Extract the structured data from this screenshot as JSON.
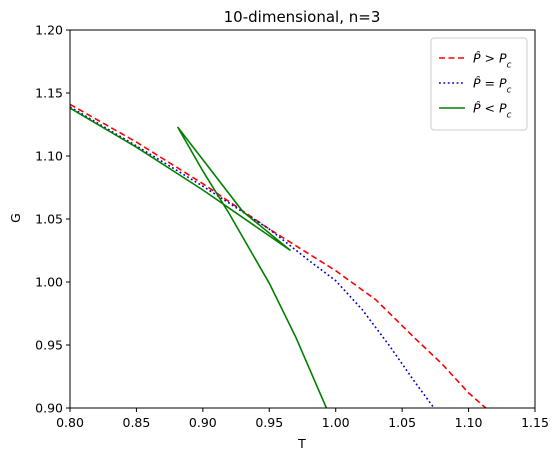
{
  "chart_data": {
    "type": "line",
    "title": "10-dimensional, n=3",
    "xlabel": "T",
    "ylabel": "G",
    "xlim": [
      0.8,
      1.15
    ],
    "ylim": [
      0.9,
      1.2
    ],
    "xticks": [
      "0.80",
      "0.85",
      "0.90",
      "0.95",
      "1.00",
      "1.05",
      "1.10",
      "1.15"
    ],
    "yticks": [
      "0.90",
      "0.95",
      "1.00",
      "1.05",
      "1.10",
      "1.15",
      "1.20"
    ],
    "grid": false,
    "legend_placement": "top-right",
    "series": [
      {
        "name": "P̂ > P_c",
        "label_html": "P̂ &gt; P<tspan baseline-shift='sub' font-size='9'>c</tspan>",
        "color": "#ff0000",
        "style": "dashed",
        "points": [
          [
            0.8,
            1.141
          ],
          [
            0.85,
            1.111
          ],
          [
            0.9,
            1.078
          ],
          [
            0.95,
            1.042
          ],
          [
            1.0,
            1.009
          ],
          [
            1.03,
            0.986
          ],
          [
            1.06,
            0.955
          ],
          [
            1.08,
            0.935
          ],
          [
            1.1,
            0.912
          ],
          [
            1.113,
            0.9
          ]
        ]
      },
      {
        "name": "P̂ = P_c",
        "color": "#0000cc",
        "style": "dotted",
        "points": [
          [
            0.8,
            1.139
          ],
          [
            0.85,
            1.108
          ],
          [
            0.9,
            1.076
          ],
          [
            0.95,
            1.042
          ],
          [
            0.98,
            1.017
          ],
          [
            1.0,
            1.001
          ],
          [
            1.02,
            0.978
          ],
          [
            1.04,
            0.95
          ],
          [
            1.06,
            0.92
          ],
          [
            1.074,
            0.9
          ]
        ]
      },
      {
        "name": "P̂ < P_c",
        "color": "#008000",
        "style": "solid",
        "points": [
          [
            0.8,
            1.138
          ],
          [
            0.85,
            1.107
          ],
          [
            0.9,
            1.073
          ],
          [
            0.966,
            1.025
          ],
          [
            0.93,
            1.056
          ],
          [
            0.9,
            1.097
          ],
          [
            0.881,
            1.123
          ],
          [
            0.9,
            1.088
          ],
          [
            0.92,
            1.054
          ],
          [
            0.95,
            0.999
          ],
          [
            0.97,
            0.956
          ],
          [
            0.993,
            0.9
          ]
        ]
      }
    ]
  }
}
